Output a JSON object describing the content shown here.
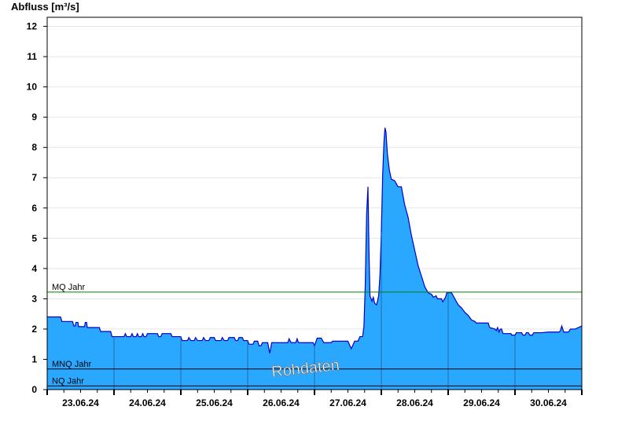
{
  "chart_data": {
    "type": "area",
    "ylabel": "Abfluss [m³/s]",
    "ylim": [
      0,
      12.3
    ],
    "yticks": [
      "0",
      "1",
      "2",
      "3",
      "4",
      "5",
      "6",
      "7",
      "8",
      "9",
      "10",
      "11",
      "12"
    ],
    "xticks": [
      "23.06.24",
      "24.06.24",
      "25.06.24",
      "26.06.24",
      "27.06.24",
      "28.06.24",
      "29.06.24",
      "30.06.24"
    ],
    "xlim_days": [
      0,
      8
    ],
    "grid": true,
    "fill_color": "#2aa8ff",
    "line_color": "#0000cc",
    "reference_lines": [
      {
        "label": "MQ Jahr",
        "value": 3.22,
        "color": "#008000"
      },
      {
        "label": "MNQ Jahr",
        "value": 0.68,
        "color": "#000000"
      },
      {
        "label": "NQ Jahr",
        "value": 0.12,
        "color": "#000000"
      }
    ],
    "watermark": "Rohdaten",
    "series": [
      {
        "points": [
          [
            0.0,
            2.4
          ],
          [
            0.2,
            2.4
          ],
          [
            0.22,
            2.25
          ],
          [
            0.38,
            2.25
          ],
          [
            0.4,
            2.1
          ],
          [
            0.42,
            2.1
          ],
          [
            0.43,
            2.22
          ],
          [
            0.46,
            2.22
          ],
          [
            0.47,
            2.08
          ],
          [
            0.56,
            2.08
          ],
          [
            0.57,
            2.22
          ],
          [
            0.59,
            2.22
          ],
          [
            0.6,
            2.05
          ],
          [
            0.78,
            2.05
          ],
          [
            0.8,
            1.92
          ],
          [
            0.95,
            1.92
          ],
          [
            0.97,
            1.75
          ],
          [
            1.15,
            1.75
          ],
          [
            1.17,
            1.85
          ],
          [
            1.19,
            1.75
          ],
          [
            1.25,
            1.75
          ],
          [
            1.27,
            1.85
          ],
          [
            1.29,
            1.75
          ],
          [
            1.33,
            1.75
          ],
          [
            1.35,
            1.85
          ],
          [
            1.37,
            1.75
          ],
          [
            1.41,
            1.75
          ],
          [
            1.43,
            1.85
          ],
          [
            1.45,
            1.75
          ],
          [
            1.48,
            1.75
          ],
          [
            1.5,
            1.85
          ],
          [
            1.65,
            1.85
          ],
          [
            1.67,
            1.75
          ],
          [
            1.7,
            1.75
          ],
          [
            1.72,
            1.85
          ],
          [
            1.85,
            1.85
          ],
          [
            1.87,
            1.75
          ],
          [
            2.0,
            1.75
          ],
          [
            2.02,
            1.62
          ],
          [
            2.1,
            1.62
          ],
          [
            2.12,
            1.72
          ],
          [
            2.15,
            1.62
          ],
          [
            2.2,
            1.62
          ],
          [
            2.22,
            1.72
          ],
          [
            2.25,
            1.62
          ],
          [
            2.32,
            1.62
          ],
          [
            2.34,
            1.72
          ],
          [
            2.37,
            1.62
          ],
          [
            2.42,
            1.62
          ],
          [
            2.44,
            1.72
          ],
          [
            2.5,
            1.72
          ],
          [
            2.52,
            1.62
          ],
          [
            2.6,
            1.62
          ],
          [
            2.62,
            1.72
          ],
          [
            2.65,
            1.62
          ],
          [
            2.7,
            1.62
          ],
          [
            2.72,
            1.72
          ],
          [
            2.8,
            1.72
          ],
          [
            2.82,
            1.62
          ],
          [
            2.85,
            1.62
          ],
          [
            2.87,
            1.72
          ],
          [
            2.92,
            1.72
          ],
          [
            2.94,
            1.62
          ],
          [
            3.0,
            1.62
          ],
          [
            3.02,
            1.5
          ],
          [
            3.08,
            1.5
          ],
          [
            3.1,
            1.6
          ],
          [
            3.15,
            1.6
          ],
          [
            3.17,
            1.45
          ],
          [
            3.2,
            1.45
          ],
          [
            3.22,
            1.55
          ],
          [
            3.3,
            1.55
          ],
          [
            3.33,
            1.2
          ],
          [
            3.36,
            1.55
          ],
          [
            3.6,
            1.55
          ],
          [
            3.62,
            1.68
          ],
          [
            3.65,
            1.55
          ],
          [
            3.72,
            1.55
          ],
          [
            3.74,
            1.68
          ],
          [
            3.76,
            1.55
          ],
          [
            3.98,
            1.55
          ],
          [
            4.0,
            1.45
          ],
          [
            4.04,
            1.7
          ],
          [
            4.1,
            1.7
          ],
          [
            4.14,
            1.55
          ],
          [
            4.25,
            1.55
          ],
          [
            4.27,
            1.6
          ],
          [
            4.5,
            1.6
          ],
          [
            4.55,
            1.35
          ],
          [
            4.6,
            1.6
          ],
          [
            4.65,
            1.6
          ],
          [
            4.68,
            1.75
          ],
          [
            4.72,
            1.75
          ],
          [
            4.74,
            2.1
          ],
          [
            4.76,
            3.5
          ],
          [
            4.78,
            5.8
          ],
          [
            4.8,
            6.7
          ],
          [
            4.815,
            4.6
          ],
          [
            4.83,
            3.1
          ],
          [
            4.86,
            2.92
          ],
          [
            4.88,
            3.05
          ],
          [
            4.9,
            2.85
          ],
          [
            4.93,
            2.8
          ],
          [
            4.96,
            3.1
          ],
          [
            4.98,
            3.8
          ],
          [
            5.0,
            5.2
          ],
          [
            5.02,
            7.1
          ],
          [
            5.04,
            8.2
          ],
          [
            5.055,
            8.65
          ],
          [
            5.07,
            8.5
          ],
          [
            5.09,
            7.8
          ],
          [
            5.12,
            7.25
          ],
          [
            5.15,
            6.95
          ],
          [
            5.2,
            6.9
          ],
          [
            5.25,
            6.7
          ],
          [
            5.3,
            6.7
          ],
          [
            5.35,
            6.1
          ],
          [
            5.4,
            5.7
          ],
          [
            5.45,
            5.1
          ],
          [
            5.5,
            4.6
          ],
          [
            5.55,
            4.1
          ],
          [
            5.6,
            3.75
          ],
          [
            5.65,
            3.4
          ],
          [
            5.7,
            3.2
          ],
          [
            5.75,
            3.15
          ],
          [
            5.78,
            3.05
          ],
          [
            5.82,
            3.1
          ],
          [
            5.84,
            3.0
          ],
          [
            5.9,
            3.0
          ],
          [
            5.92,
            2.9
          ],
          [
            5.96,
            3.05
          ],
          [
            5.98,
            3.2
          ],
          [
            6.05,
            3.2
          ],
          [
            6.1,
            3.0
          ],
          [
            6.15,
            2.8
          ],
          [
            6.2,
            2.7
          ],
          [
            6.25,
            2.55
          ],
          [
            6.3,
            2.45
          ],
          [
            6.35,
            2.3
          ],
          [
            6.4,
            2.25
          ],
          [
            6.42,
            2.2
          ],
          [
            6.6,
            2.2
          ],
          [
            6.62,
            2.05
          ],
          [
            6.7,
            2.0
          ],
          [
            6.72,
            1.95
          ],
          [
            6.74,
            2.05
          ],
          [
            6.76,
            1.9
          ],
          [
            6.78,
            2.0
          ],
          [
            6.8,
            2.0
          ],
          [
            6.82,
            1.85
          ],
          [
            6.94,
            1.85
          ],
          [
            6.95,
            1.8
          ],
          [
            7.0,
            1.8
          ],
          [
            7.02,
            1.88
          ],
          [
            7.1,
            1.88
          ],
          [
            7.12,
            1.8
          ],
          [
            7.15,
            1.8
          ],
          [
            7.17,
            1.88
          ],
          [
            7.2,
            1.88
          ],
          [
            7.22,
            1.8
          ],
          [
            7.26,
            1.8
          ],
          [
            7.28,
            1.88
          ],
          [
            7.4,
            1.88
          ],
          [
            7.5,
            1.9
          ],
          [
            7.66,
            1.9
          ],
          [
            7.68,
            1.95
          ],
          [
            7.7,
            2.1
          ],
          [
            7.73,
            1.9
          ],
          [
            7.8,
            1.9
          ],
          [
            7.83,
            2.0
          ],
          [
            7.9,
            2.0
          ],
          [
            8.0,
            2.1
          ]
        ]
      }
    ]
  }
}
